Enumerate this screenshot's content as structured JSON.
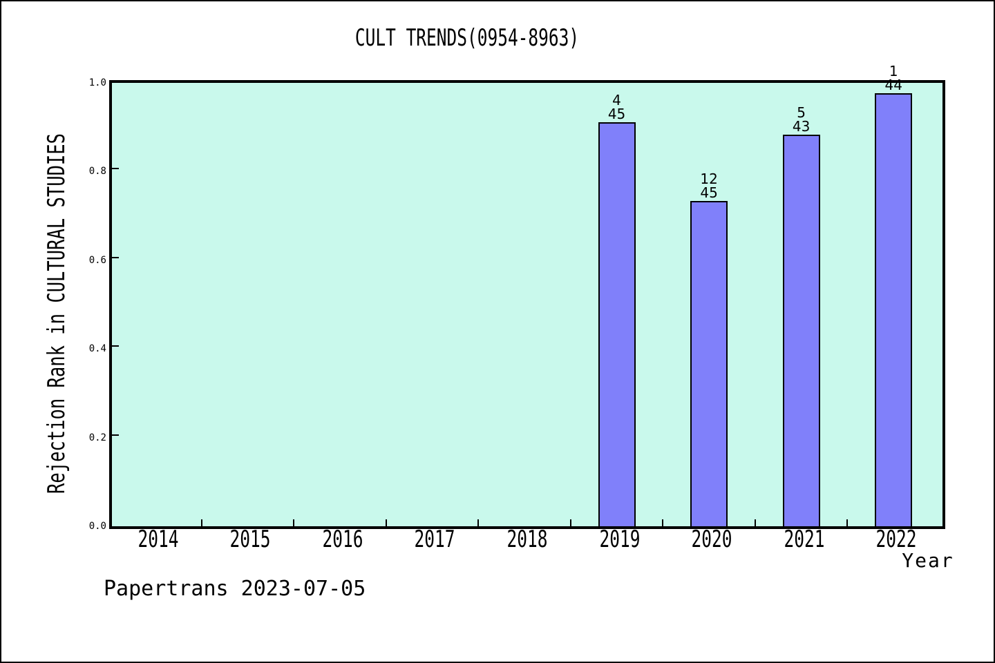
{
  "footer": "Papertrans 2023-07-05",
  "chart_data": {
    "type": "bar",
    "title": "CULT TRENDS(0954-8963)",
    "xlabel": "Year",
    "ylabel": "Rejection Rank in CULTURAL STUDIES",
    "categories": [
      "2014",
      "2015",
      "2016",
      "2017",
      "2018",
      "2019",
      "2020",
      "2021",
      "2022"
    ],
    "values": [
      null,
      null,
      null,
      null,
      null,
      0.9111,
      0.7333,
      0.8837,
      0.9773
    ],
    "bars": [
      {
        "category": "2019",
        "rank": "4",
        "total": "45",
        "value": 0.9111
      },
      {
        "category": "2020",
        "rank": "12",
        "total": "45",
        "value": 0.7333
      },
      {
        "category": "2021",
        "rank": "5",
        "total": "43",
        "value": 0.8837
      },
      {
        "category": "2022",
        "rank": "1",
        "total": "44",
        "value": 0.9773
      }
    ],
    "yticks": [
      "0.0",
      "0.2",
      "0.4",
      "0.6",
      "0.8",
      "1.0"
    ],
    "ylim": [
      0,
      1
    ],
    "grid": false,
    "legend": null,
    "colors": {
      "bar_fill": "#8080fa",
      "bar_edge": "#000000",
      "plot_background": "#c9f9ec",
      "figure_background": "#ffffff",
      "text": "#000000"
    }
  }
}
